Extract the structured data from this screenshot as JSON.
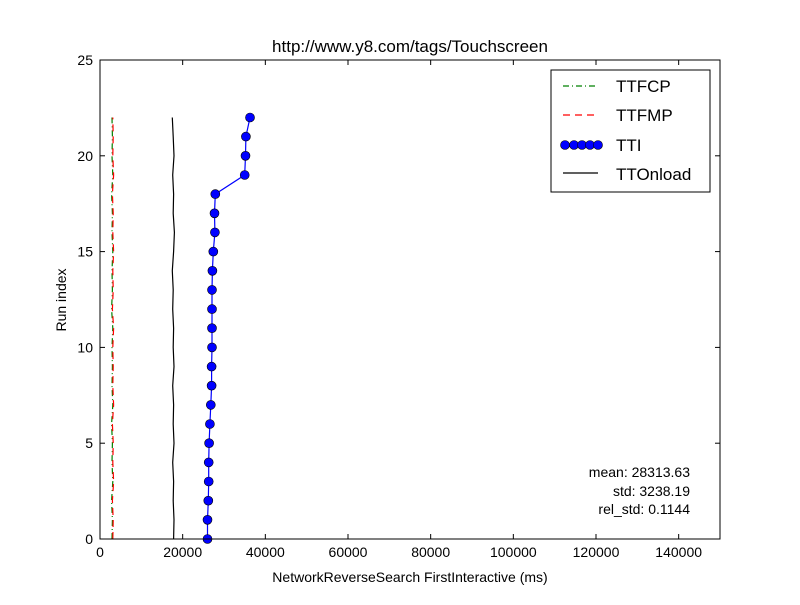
{
  "chart_data": {
    "type": "line",
    "title": "http://www.y8.com/tags/Touchscreen",
    "xlabel": "NetworkReverseSearch FirstInteractive (ms)",
    "ylabel": "Run index",
    "xlim": [
      0,
      150000
    ],
    "ylim": [
      0,
      25
    ],
    "x_ticks": [
      0,
      20000,
      40000,
      60000,
      80000,
      100000,
      120000,
      140000
    ],
    "y_ticks": [
      0,
      5,
      10,
      15,
      20,
      25
    ],
    "x_tick_labels": [
      "0",
      "20000",
      "40000",
      "60000",
      "80000",
      "100000",
      "120000",
      "140000"
    ],
    "y_tick_labels": [
      "0",
      "5",
      "10",
      "15",
      "20",
      "25"
    ],
    "grid": false,
    "legend_position": "top-right",
    "series": [
      {
        "name": "TTFCP",
        "color": "#008000",
        "style": "dashdot",
        "x": [
          2900,
          3000,
          2800,
          3100,
          2900,
          3000,
          2800,
          3100,
          2900,
          3000,
          2900,
          3100,
          2800,
          3000,
          2900,
          3100,
          2900,
          3000,
          2800,
          3100,
          2900,
          3000,
          2900
        ],
        "y": [
          0,
          1,
          2,
          3,
          4,
          5,
          6,
          7,
          8,
          9,
          10,
          11,
          12,
          13,
          14,
          15,
          16,
          17,
          18,
          19,
          20,
          21,
          22
        ]
      },
      {
        "name": "TTFMP",
        "color": "#ff0000",
        "style": "dashed",
        "x": [
          3100,
          3200,
          3000,
          3300,
          3100,
          3200,
          3000,
          3300,
          3100,
          3200,
          3100,
          3300,
          3000,
          3200,
          3100,
          3300,
          3100,
          3200,
          3000,
          3300,
          3100,
          3200,
          3100
        ],
        "y": [
          0,
          1,
          2,
          3,
          4,
          5,
          6,
          7,
          8,
          9,
          10,
          11,
          12,
          13,
          14,
          15,
          16,
          17,
          18,
          19,
          20,
          21,
          22
        ]
      },
      {
        "name": "TTI",
        "color": "#0000ff",
        "style": "solid-markers",
        "x": [
          26000,
          26000,
          26200,
          26300,
          26300,
          26400,
          26600,
          26800,
          27000,
          27000,
          27100,
          27100,
          27100,
          27100,
          27200,
          27400,
          27800,
          27700,
          27900,
          35000,
          35200,
          35300,
          36300
        ],
        "y": [
          0,
          1,
          2,
          3,
          4,
          5,
          6,
          7,
          8,
          9,
          10,
          11,
          12,
          13,
          14,
          15,
          16,
          17,
          18,
          19,
          20,
          21,
          22
        ]
      },
      {
        "name": "TTOnload",
        "color": "#000000",
        "style": "solid",
        "x": [
          17800,
          17900,
          17700,
          17800,
          17600,
          17900,
          17700,
          17800,
          17600,
          17900,
          17700,
          17800,
          17600,
          17700,
          17500,
          17800,
          18000,
          17700,
          17800,
          17600,
          17900,
          17700,
          17500
        ],
        "y": [
          0,
          1,
          2,
          3,
          4,
          5,
          6,
          7,
          8,
          9,
          10,
          11,
          12,
          13,
          14,
          15,
          16,
          17,
          18,
          19,
          20,
          21,
          22
        ]
      }
    ],
    "annotations": [
      "mean: 28313.63",
      "std: 3238.19",
      "rel_std: 0.1144"
    ]
  }
}
